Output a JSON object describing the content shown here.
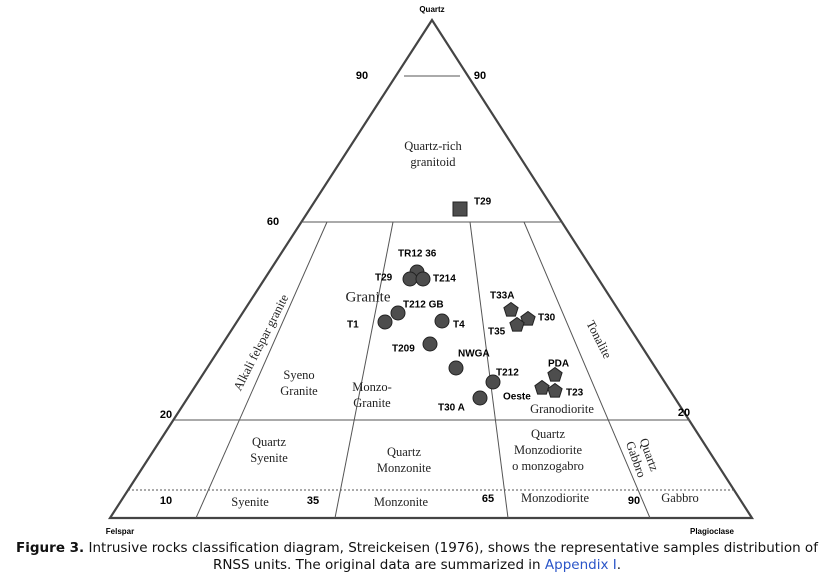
{
  "vertices": {
    "top": "Quartz",
    "left": "Felspar",
    "right": "Plagioclase"
  },
  "ticks": {
    "left_90": "90",
    "right_90": "90",
    "left_60": "60",
    "left_20": "20",
    "right_20": "20",
    "base": [
      "10",
      "35",
      "65",
      "90"
    ]
  },
  "fields": [
    {
      "lines": [
        "Quartz-rich",
        "granitoid"
      ]
    },
    {
      "lines": [
        "Alkali felspar granite"
      ]
    },
    {
      "lines": [
        "Syeno",
        "Granite"
      ]
    },
    {
      "lines": [
        "Granite"
      ]
    },
    {
      "lines": [
        "Monzo-",
        "Granite"
      ]
    },
    {
      "lines": [
        "Granodiorite"
      ]
    },
    {
      "lines": [
        "Tonalite"
      ]
    },
    {
      "lines": [
        "Quartz",
        "Syenite"
      ]
    },
    {
      "lines": [
        "Quartz",
        "Monzonite"
      ]
    },
    {
      "lines": [
        "Quartz",
        "Monzodiorite",
        "o monzogabro"
      ]
    },
    {
      "lines": [
        "Quartz",
        "Gabbro"
      ]
    },
    {
      "lines": [
        "Syenite"
      ]
    },
    {
      "lines": [
        "Monzonite"
      ]
    },
    {
      "lines": [
        "Monzodiorite"
      ]
    },
    {
      "lines": [
        "Gabbro"
      ]
    }
  ],
  "samples": [
    "T29",
    "TR12 36",
    "T29",
    "T214",
    "T212 GB",
    "T1",
    "T4",
    "T209",
    "NWGA",
    "T212",
    "T30 A",
    "T33A",
    "T30",
    "T35",
    "PDA",
    "Oeste",
    "T23"
  ],
  "caption": {
    "label": "Figure 3.",
    "text": " Intrusive rocks classification diagram, Streickeisen (1976), shows the representative samples distribution of RNSS units. The original data are summarized in ",
    "link": "Appendix I",
    "end": "."
  }
}
